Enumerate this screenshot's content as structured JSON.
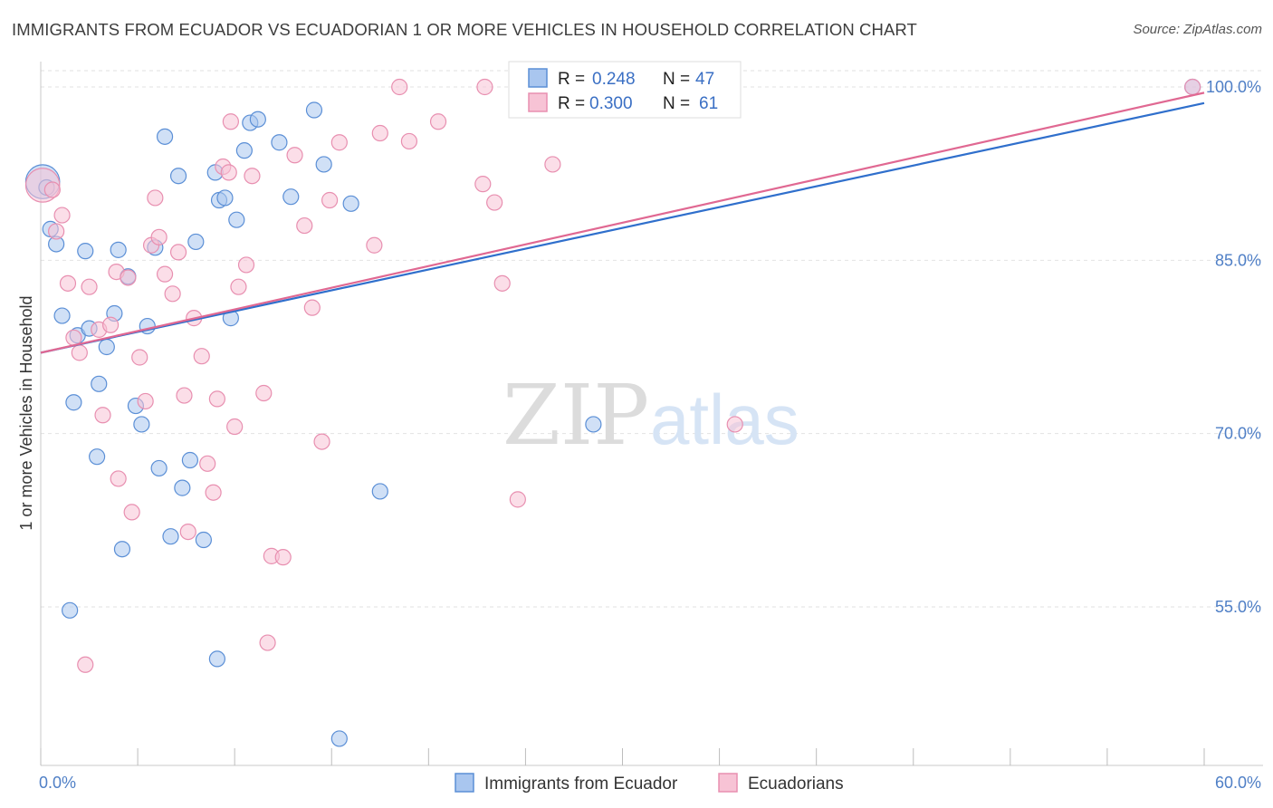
{
  "chart_data": {
    "type": "scatter",
    "title": "IMMIGRANTS FROM ECUADOR VS ECUADORIAN 1 OR MORE VEHICLES IN HOUSEHOLD CORRELATION CHART",
    "source": "Source: ZipAtlas.com",
    "xlabel": "",
    "ylabel": "1 or more Vehicles in Household",
    "xlim": [
      0,
      60
    ],
    "ylim": [
      42,
      101.5
    ],
    "x_tick_labels": [
      {
        "value": 0,
        "label": "0.0%"
      },
      {
        "value": 60,
        "label": "60.0%"
      }
    ],
    "y_tick_labels": [
      {
        "value": 55,
        "label": "55.0%"
      },
      {
        "value": 70,
        "label": "70.0%"
      },
      {
        "value": 85,
        "label": "85.0%"
      },
      {
        "value": 100,
        "label": "100.0%"
      }
    ],
    "watermark": {
      "part1": "ZIP",
      "part2": "atlas"
    },
    "legend": {
      "r_label": "R =",
      "n_label": "N =",
      "entries": [
        {
          "r": "0.248",
          "n": "47"
        },
        {
          "r": "0.300",
          "n": "61"
        }
      ]
    },
    "series": [
      {
        "name": "Immigrants from Ecuador",
        "color": "#5b8fd6",
        "fill": "#a9c6ef",
        "trend": {
          "x0": 0,
          "y0": 77.0,
          "x1": 60,
          "y1": 98.6,
          "color": "#2f6fcc"
        },
        "points": [
          [
            0.1,
            91.8,
            2.2
          ],
          [
            0.5,
            87.7,
            1
          ],
          [
            0.8,
            86.4,
            1
          ],
          [
            1.1,
            80.2,
            1
          ],
          [
            1.7,
            72.7,
            1
          ],
          [
            1.9,
            78.5,
            1
          ],
          [
            2.3,
            85.8,
            1
          ],
          [
            2.5,
            79.1,
            1
          ],
          [
            3.0,
            74.3,
            1
          ],
          [
            3.4,
            77.5,
            1
          ],
          [
            3.8,
            80.4,
            1
          ],
          [
            4.0,
            85.9,
            1
          ],
          [
            4.5,
            83.6,
            1
          ],
          [
            4.9,
            72.4,
            1
          ],
          [
            5.2,
            70.8,
            1
          ],
          [
            5.5,
            79.3,
            1
          ],
          [
            5.9,
            86.1,
            1
          ],
          [
            6.1,
            67.0,
            1
          ],
          [
            6.4,
            95.7,
            1
          ],
          [
            7.1,
            92.3,
            1
          ],
          [
            7.3,
            65.3,
            1
          ],
          [
            7.7,
            67.7,
            1
          ],
          [
            8.0,
            86.6,
            1
          ],
          [
            8.4,
            60.8,
            1
          ],
          [
            9.1,
            50.5,
            1
          ],
          [
            9.2,
            90.2,
            1
          ],
          [
            9.5,
            90.4,
            1
          ],
          [
            9.8,
            80.0,
            1
          ],
          [
            10.1,
            88.5,
            1
          ],
          [
            10.5,
            94.5,
            1
          ],
          [
            10.8,
            96.9,
            1
          ],
          [
            11.2,
            97.2,
            1
          ],
          [
            12.3,
            95.2,
            1
          ],
          [
            12.9,
            90.5,
            1
          ],
          [
            14.1,
            98.0,
            1
          ],
          [
            14.6,
            93.3,
            1
          ],
          [
            15.4,
            43.6,
            1
          ],
          [
            16.0,
            89.9,
            1
          ],
          [
            17.5,
            65.0,
            1
          ],
          [
            28.5,
            70.8,
            1
          ],
          [
            59.4,
            100.0,
            1
          ],
          [
            1.5,
            54.7,
            1
          ],
          [
            2.9,
            68.0,
            1
          ],
          [
            4.2,
            60.0,
            1
          ],
          [
            6.7,
            61.1,
            1
          ],
          [
            9.0,
            92.6,
            1
          ],
          [
            0.3,
            91.3,
            1
          ]
        ]
      },
      {
        "name": "Ecuadorians",
        "color": "#e88fb0",
        "fill": "#f7c3d5",
        "trend": {
          "x0": 0,
          "y0": 77.0,
          "x1": 60,
          "y1": 99.5,
          "color": "#e06892"
        },
        "points": [
          [
            0.1,
            91.5,
            2.2
          ],
          [
            0.6,
            91.1,
            1
          ],
          [
            0.8,
            87.5,
            1
          ],
          [
            1.1,
            88.9,
            1
          ],
          [
            1.4,
            83.0,
            1
          ],
          [
            1.7,
            78.3,
            1
          ],
          [
            2.0,
            77.0,
            1
          ],
          [
            2.3,
            50.0,
            1
          ],
          [
            2.5,
            82.7,
            1
          ],
          [
            3.0,
            79.0,
            1
          ],
          [
            3.2,
            71.6,
            1
          ],
          [
            3.6,
            79.4,
            1
          ],
          [
            3.9,
            84.0,
            1
          ],
          [
            4.0,
            66.1,
            1
          ],
          [
            4.5,
            83.5,
            1
          ],
          [
            4.7,
            63.2,
            1
          ],
          [
            5.1,
            76.6,
            1
          ],
          [
            5.4,
            72.8,
            1
          ],
          [
            5.7,
            86.3,
            1
          ],
          [
            5.9,
            90.4,
            1
          ],
          [
            6.1,
            87.0,
            1
          ],
          [
            6.4,
            83.8,
            1
          ],
          [
            6.8,
            82.1,
            1
          ],
          [
            7.1,
            85.7,
            1
          ],
          [
            7.4,
            73.3,
            1
          ],
          [
            7.6,
            61.5,
            1
          ],
          [
            7.9,
            80.0,
            1
          ],
          [
            8.3,
            76.7,
            1
          ],
          [
            8.6,
            67.4,
            1
          ],
          [
            8.9,
            64.9,
            1
          ],
          [
            9.1,
            73.0,
            1
          ],
          [
            9.4,
            93.1,
            1
          ],
          [
            9.8,
            97.0,
            1
          ],
          [
            10.0,
            70.6,
            1
          ],
          [
            10.2,
            82.7,
            1
          ],
          [
            10.6,
            84.6,
            1
          ],
          [
            10.9,
            92.3,
            1
          ],
          [
            11.5,
            73.5,
            1
          ],
          [
            11.7,
            51.9,
            1
          ],
          [
            11.9,
            59.4,
            1
          ],
          [
            12.5,
            59.3,
            1
          ],
          [
            13.1,
            94.1,
            1
          ],
          [
            13.6,
            88.0,
            1
          ],
          [
            14.0,
            80.9,
            1
          ],
          [
            14.5,
            69.3,
            1
          ],
          [
            14.9,
            90.2,
            1
          ],
          [
            15.4,
            95.2,
            1
          ],
          [
            17.5,
            96.0,
            1
          ],
          [
            17.2,
            86.3,
            1
          ],
          [
            18.5,
            100.0,
            1
          ],
          [
            19.0,
            95.3,
            1
          ],
          [
            20.5,
            97.0,
            1
          ],
          [
            22.8,
            91.6,
            1
          ],
          [
            22.9,
            100.0,
            1
          ],
          [
            23.4,
            90.0,
            1
          ],
          [
            23.8,
            83.0,
            1
          ],
          [
            24.6,
            64.3,
            1
          ],
          [
            26.4,
            93.3,
            1
          ],
          [
            35.8,
            70.8,
            1
          ],
          [
            59.4,
            100.0,
            1
          ],
          [
            9.7,
            92.6,
            1
          ]
        ]
      }
    ]
  }
}
